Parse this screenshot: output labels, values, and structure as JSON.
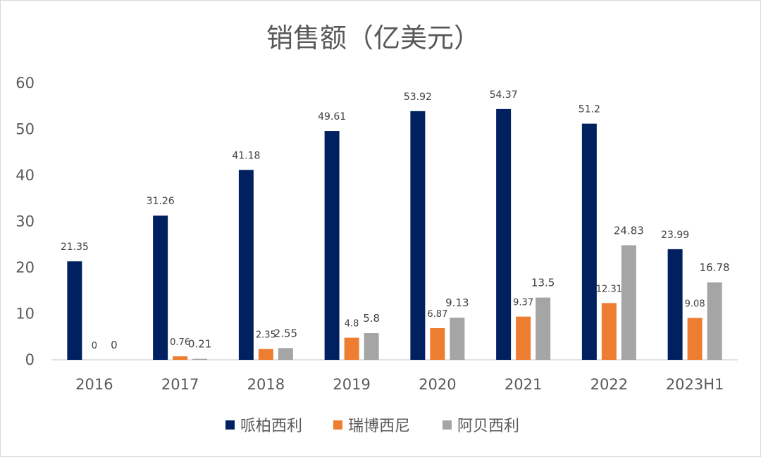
{
  "chart_data": {
    "type": "bar",
    "title": "销售额（亿美元）",
    "categories": [
      "2016",
      "2017",
      "2018",
      "2019",
      "2020",
      "2021",
      "2022",
      "2023H1"
    ],
    "yticks": [
      "0",
      "10",
      "20",
      "30",
      "40",
      "50",
      "60"
    ],
    "ylim": [
      0,
      60
    ],
    "grid": false,
    "legend_position": "bottom",
    "series": [
      {
        "name": "哌柏西利",
        "color": "#002060",
        "values": [
          21.35,
          31.26,
          41.18,
          49.61,
          53.92,
          54.37,
          51.2,
          23.99
        ],
        "labels": [
          "21.35",
          "31.26",
          "41.18",
          "49.61",
          "53.92",
          "54.37",
          "51.2",
          "23.99"
        ]
      },
      {
        "name": "瑞博西尼",
        "color": "#ED7D31",
        "values": [
          0,
          0.76,
          2.35,
          4.8,
          6.87,
          9.37,
          12.31,
          9.08
        ],
        "labels": [
          "0",
          "0.76",
          "2.35",
          "4.8",
          "6.87",
          "9.37",
          "12.31",
          "9.08"
        ]
      },
      {
        "name": "阿贝西利",
        "color": "#A5A5A5",
        "values": [
          0,
          0.21,
          2.55,
          5.8,
          9.13,
          13.5,
          24.83,
          16.78
        ],
        "labels": [
          "0",
          "0.21",
          "2.55",
          "5.8",
          "9.13",
          "13.5",
          "24.83",
          "16.78"
        ]
      }
    ]
  }
}
